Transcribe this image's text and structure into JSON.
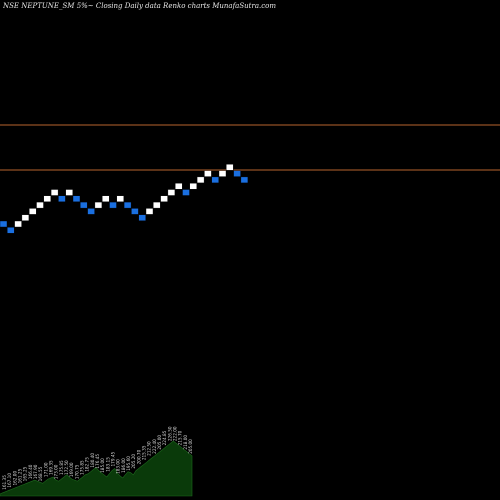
{
  "chart_data": {
    "type": "renko",
    "title": "NSE NEPTUNE_SM 5%~  Closing Daily data  Renko  charts MunafaSutra.com",
    "colors": {
      "background": "#000000",
      "up_brick": "#ffffff",
      "down_brick": "#1a6fe0",
      "reference_line": "#b8632e",
      "volume_area": "#0a3a0a",
      "volume_edge": "#1d6a1d"
    },
    "reference_lines": [
      0.66,
      0.75
    ],
    "brick_directions": [
      "down",
      "down",
      "up",
      "up",
      "up",
      "up",
      "up",
      "up",
      "down",
      "up",
      "down",
      "down",
      "down",
      "up",
      "up",
      "down",
      "up",
      "down",
      "down",
      "down",
      "up",
      "up",
      "up",
      "up",
      "up",
      "down",
      "up",
      "up",
      "up",
      "down",
      "up",
      "up",
      "down",
      "down"
    ],
    "volume_area": [
      2,
      3,
      4,
      5,
      6,
      7,
      8,
      9,
      10,
      11,
      12,
      13,
      14,
      15,
      14,
      13,
      12,
      14,
      16,
      17,
      18,
      15,
      14,
      16,
      18,
      20,
      18,
      16,
      15,
      14,
      16,
      18,
      20,
      21,
      23,
      25,
      27,
      24,
      22,
      20,
      18,
      21,
      24,
      26,
      22,
      19,
      17,
      20,
      23,
      22,
      20,
      24,
      26,
      28,
      30,
      32,
      34,
      36,
      38,
      40,
      42,
      44,
      46,
      48,
      50,
      52,
      50,
      48,
      46,
      44,
      42,
      40,
      38
    ],
    "level_labels": [
      "161.35",
      "167.10",
      "162.00",
      "161.25",
      "165.25",
      "166.40",
      "167.90",
      "168.55",
      "171.00",
      "169.35",
      "173.00",
      "175.85",
      "172.50",
      "169.00",
      "170.75",
      "175.85",
      "182.75",
      "180.40",
      "176.45",
      "185.00",
      "183.15",
      "179.45",
      "183.00",
      "186.00",
      "195.60",
      "205.20",
      "200.70",
      "215.35",
      "212.50",
      "222.40",
      "205.00",
      "224.85",
      "226.50",
      "222.00",
      "215.70",
      "218.00",
      "205.00"
    ]
  }
}
